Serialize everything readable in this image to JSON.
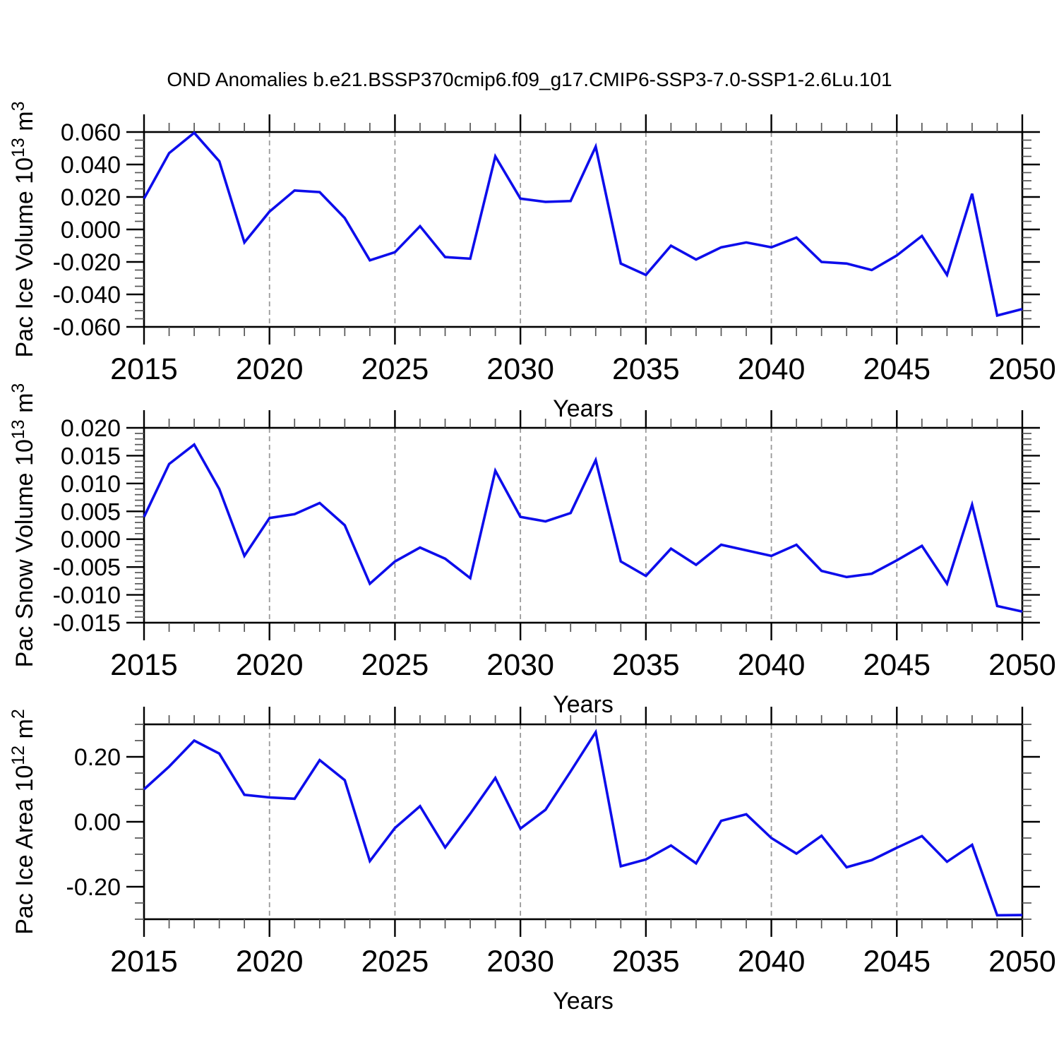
{
  "title": "OND Anomalies b.e21.BSSP370cmip6.f09_g17.CMIP6-SSP3-7.0-SSP1-2.6Lu.101",
  "colors": {
    "line": "#0d0deb",
    "grid": "#999999",
    "axis": "#000000",
    "minor_tick": "#555555",
    "text": "#000000",
    "background": "#ffffff"
  },
  "x_years": [
    2015,
    2016,
    2017,
    2018,
    2019,
    2020,
    2021,
    2022,
    2023,
    2024,
    2025,
    2026,
    2027,
    2028,
    2029,
    2030,
    2031,
    2032,
    2033,
    2034,
    2035,
    2036,
    2037,
    2038,
    2039,
    2040,
    2041,
    2042,
    2043,
    2044,
    2045,
    2046,
    2047,
    2048,
    2049,
    2050
  ],
  "x_tick_labels": [
    "2015",
    "2020",
    "2025",
    "2030",
    "2035",
    "2040",
    "2045",
    "2050"
  ],
  "chart_data": [
    {
      "type": "line",
      "ylabel_plain": "Pac Ice Volume 10^13 m^3",
      "ylabel_parts": {
        "base": "Pac Ice Volume 10",
        "exp": "13",
        "unit": " m",
        "unit_exp": "3"
      },
      "xlabel": "Years",
      "xlim": [
        2015,
        2050
      ],
      "ylim": [
        -0.06,
        0.06
      ],
      "y_major_step": 0.02,
      "y_minor_step": 0.005,
      "y_tick_decimals": 3,
      "y_tick_labels": [
        "0.060",
        "0.040",
        "0.020",
        "0.000",
        "-0.020",
        "-0.040",
        "-0.060"
      ],
      "x_major_step": 5,
      "x_minor_step": 1,
      "grid": "vertical-dashed-at-interior-x-majors",
      "legend": "none",
      "values": [
        0.019,
        0.047,
        0.0595,
        0.042,
        -0.008,
        0.011,
        0.024,
        0.023,
        0.007,
        -0.019,
        -0.014,
        0.002,
        -0.017,
        -0.018,
        0.045,
        0.019,
        0.017,
        0.0175,
        0.051,
        -0.021,
        -0.028,
        -0.01,
        -0.0185,
        -0.011,
        -0.008,
        -0.011,
        -0.005,
        -0.02,
        -0.021,
        -0.025,
        -0.016,
        -0.004,
        -0.028,
        0.022,
        -0.053,
        -0.049
      ]
    },
    {
      "type": "line",
      "ylabel_plain": "Pac Snow Volume 10^13 m^3",
      "ylabel_parts": {
        "base": "Pac Snow Volume 10",
        "exp": "13",
        "unit": " m",
        "unit_exp": "3"
      },
      "xlabel": "Years",
      "xlim": [
        2015,
        2050
      ],
      "ylim": [
        -0.015,
        0.02
      ],
      "y_major_step": 0.005,
      "y_minor_step": 0.001,
      "y_tick_decimals": 3,
      "y_tick_labels": [
        "0.020",
        "0.015",
        "0.010",
        "0.005",
        "0.000",
        "-0.005",
        "-0.010",
        "-0.015"
      ],
      "x_major_step": 5,
      "x_minor_step": 1,
      "grid": "vertical-dashed-at-interior-x-majors",
      "legend": "none",
      "values": [
        0.004,
        0.0135,
        0.017,
        0.009,
        -0.003,
        0.0038,
        0.0045,
        0.0065,
        0.0025,
        -0.008,
        -0.004,
        -0.0015,
        -0.0035,
        -0.007,
        0.0123,
        0.004,
        0.0032,
        0.0047,
        0.0142,
        -0.004,
        -0.0066,
        -0.0017,
        -0.0046,
        -0.001,
        -0.002,
        -0.003,
        -0.001,
        -0.0057,
        -0.0068,
        -0.0062,
        -0.0038,
        -0.0012,
        -0.008,
        0.0062,
        -0.012,
        -0.013
      ]
    },
    {
      "type": "line",
      "ylabel_plain": "Pac Ice Area 10^12 m^2",
      "ylabel_parts": {
        "base": "Pac Ice Area 10",
        "exp": "12",
        "unit": " m",
        "unit_exp": "2"
      },
      "xlabel": "Years",
      "xlim": [
        2015,
        2050
      ],
      "ylim": [
        -0.3,
        0.3
      ],
      "y_major_step": 0.2,
      "y_minor_step": 0.05,
      "y_tick_decimals": 2,
      "y_tick_labels": [
        "0.20",
        "0.00",
        "-0.20"
      ],
      "x_major_step": 5,
      "x_minor_step": 1,
      "grid": "vertical-dashed-at-interior-x-majors",
      "legend": "none",
      "values": [
        0.1,
        0.17,
        0.25,
        0.21,
        0.083,
        0.075,
        0.071,
        0.19,
        0.128,
        -0.121,
        -0.019,
        0.048,
        -0.079,
        0.025,
        0.135,
        -0.021,
        0.037,
        0.155,
        0.276,
        -0.137,
        -0.116,
        -0.073,
        -0.128,
        0.003,
        0.023,
        -0.05,
        -0.098,
        -0.043,
        -0.14,
        -0.118,
        -0.08,
        -0.044,
        -0.123,
        -0.071,
        -0.288,
        -0.287
      ]
    }
  ]
}
